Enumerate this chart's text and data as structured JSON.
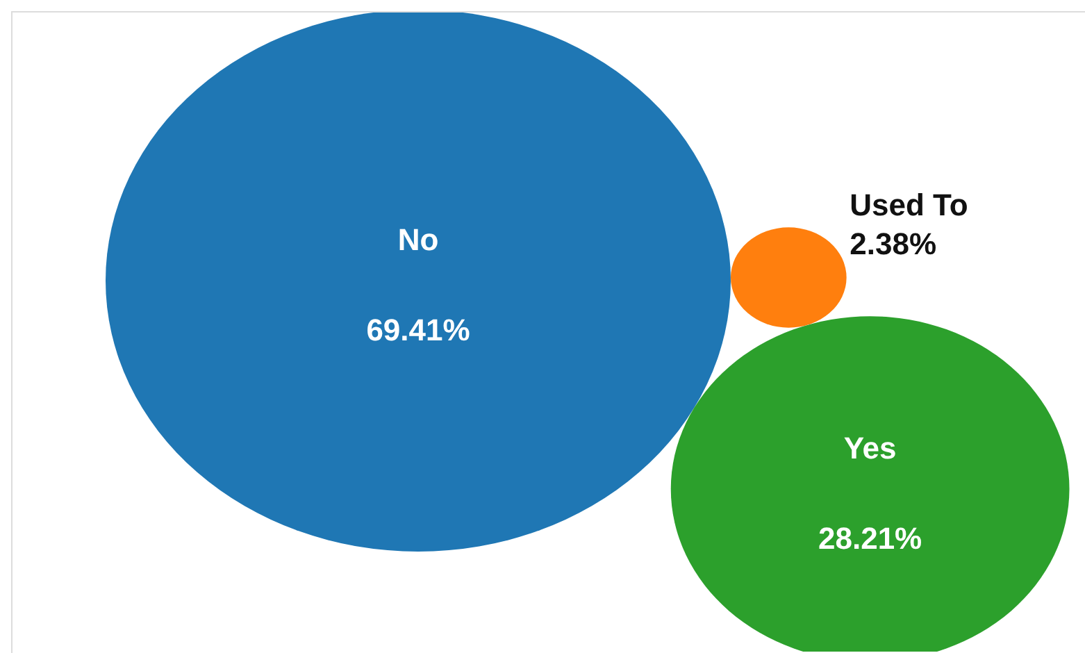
{
  "chart_data": {
    "type": "other",
    "categories": [
      "No",
      "Used To",
      "Yes"
    ],
    "values": [
      69.41,
      2.38,
      28.21
    ],
    "colors": [
      "#1f77b4",
      "#ff7f0e",
      "#2ca02c"
    ],
    "value_labels": [
      "69.41%",
      "2.38%",
      "28.21%"
    ],
    "legend": false
  }
}
